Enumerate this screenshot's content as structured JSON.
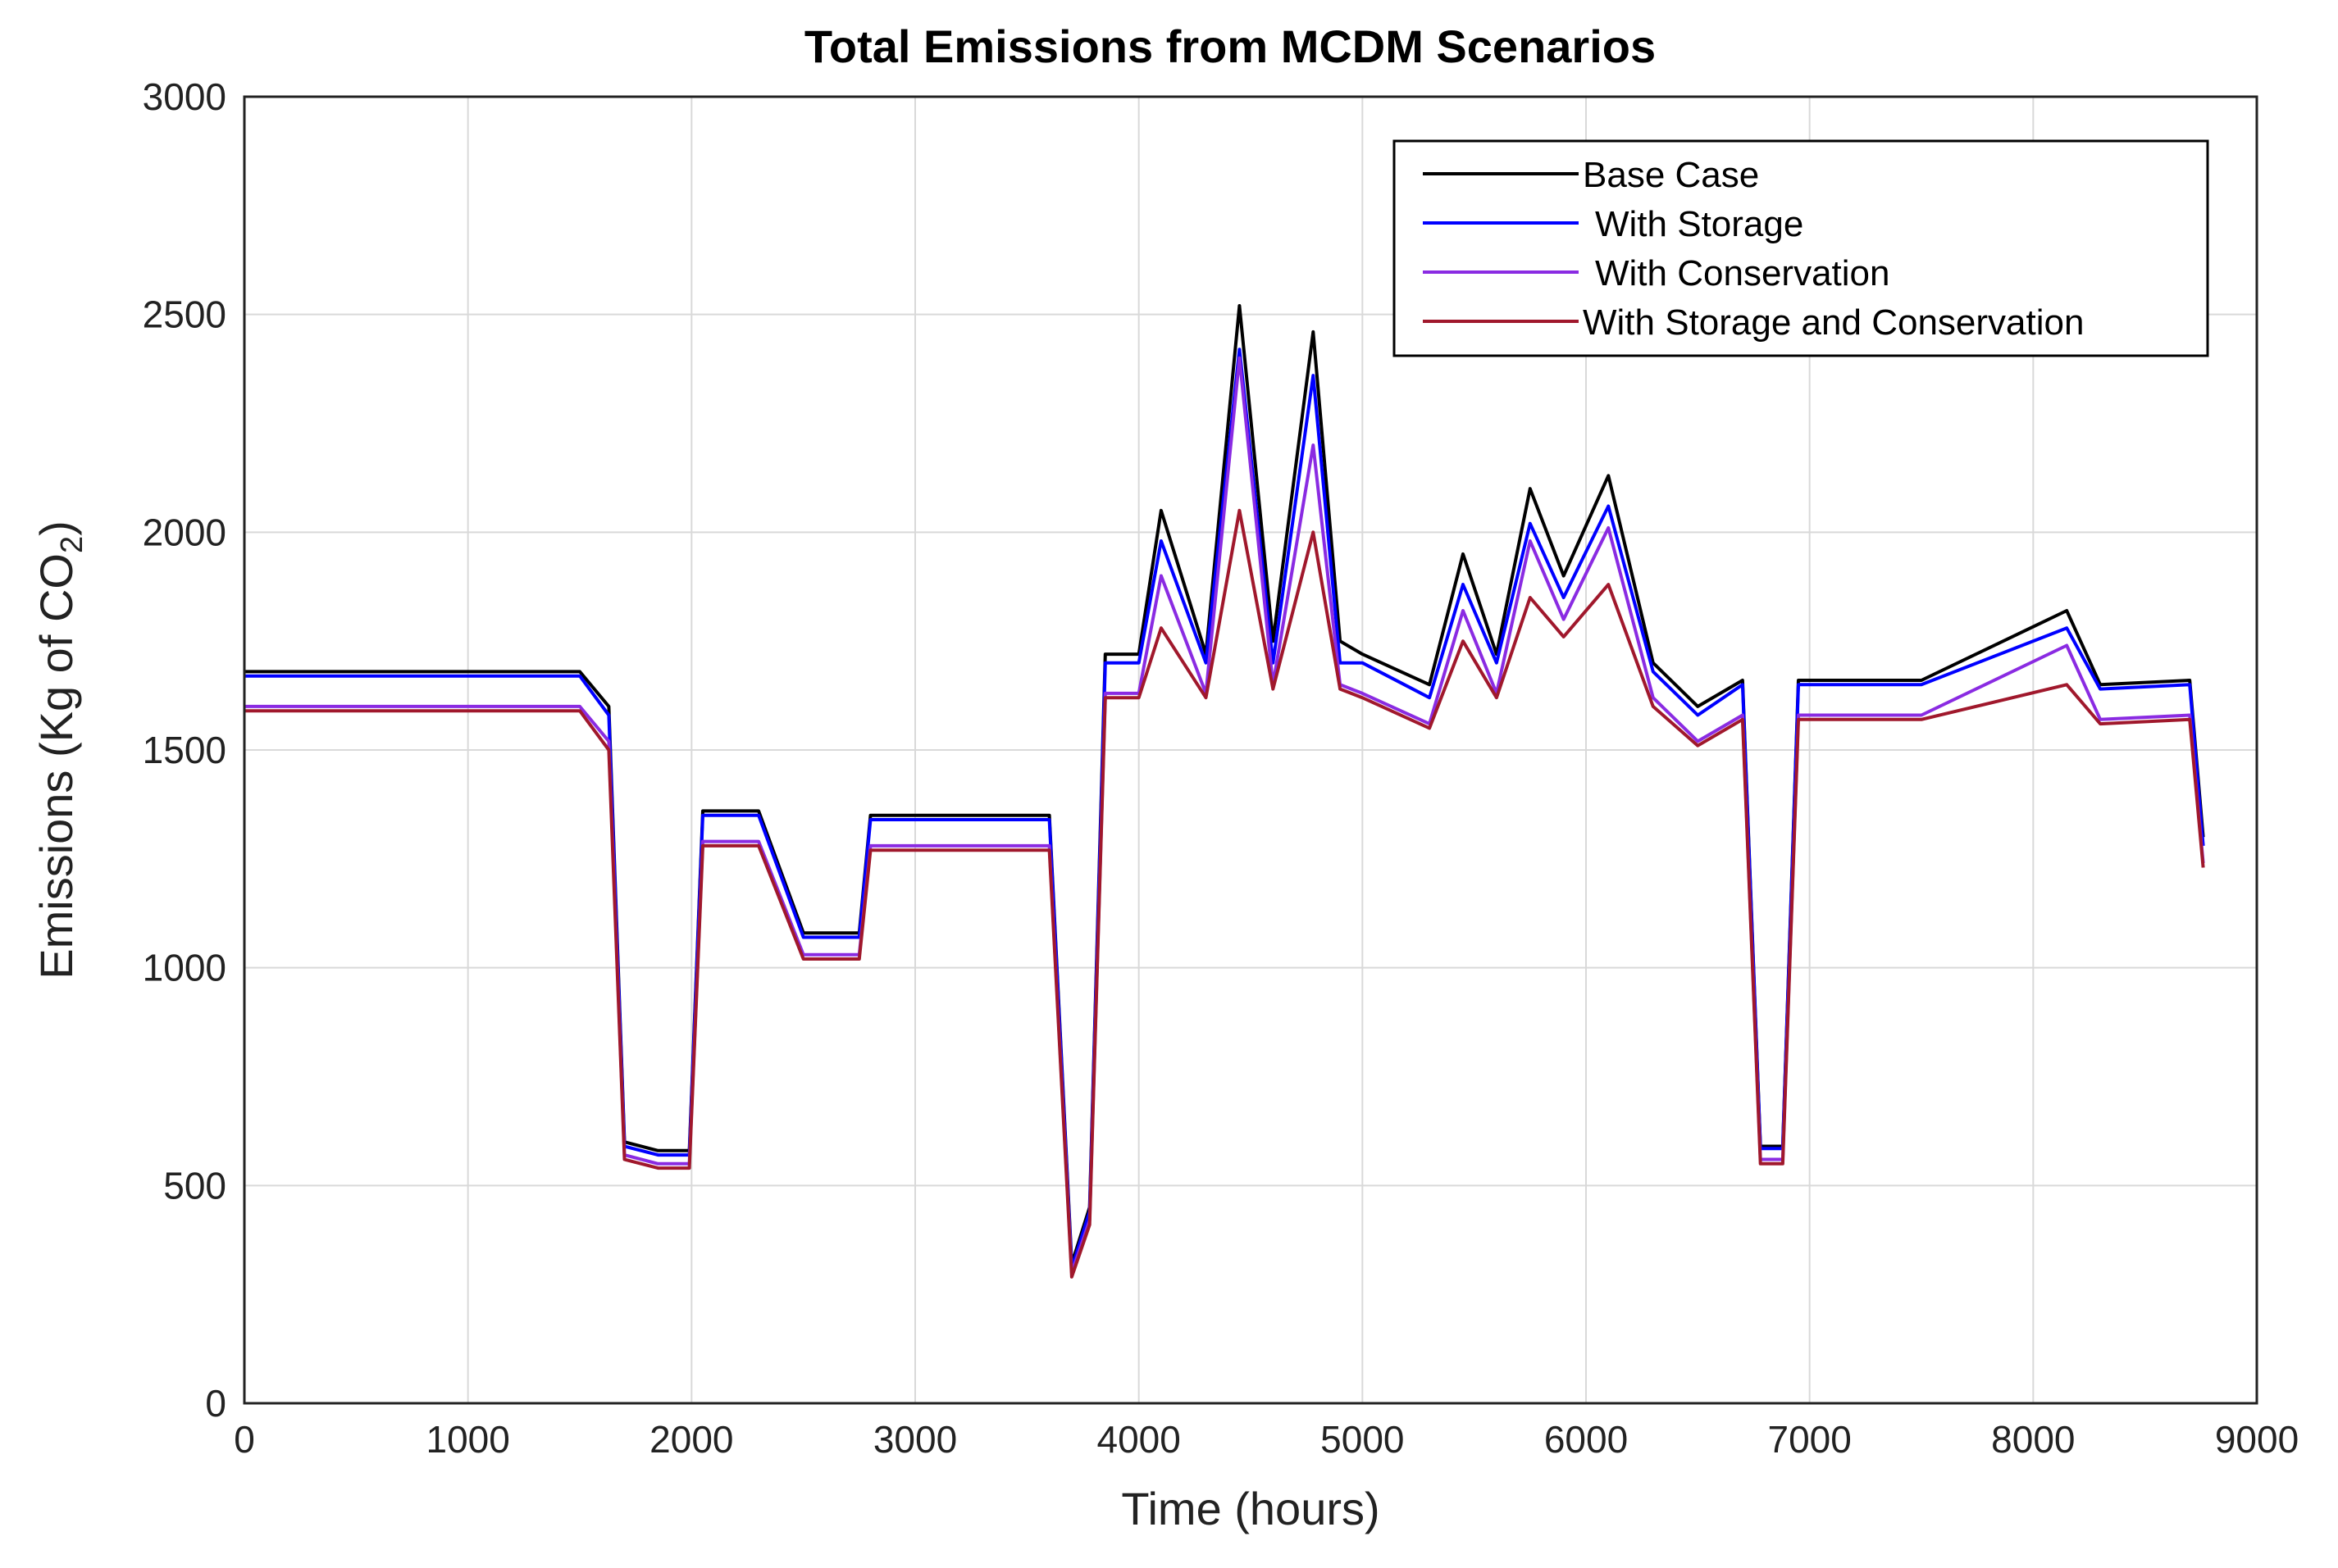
{
  "chart_data": {
    "type": "line",
    "title": "Total Emissions from MCDM Scenarios",
    "xlabel": "Time (hours)",
    "ylabel_main": "Emissions (Kg of CO",
    "ylabel_sub": "2",
    "ylabel_close": ")",
    "xlim": [
      0,
      9000
    ],
    "ylim": [
      0,
      3000
    ],
    "xticks": [
      0,
      1000,
      2000,
      3000,
      4000,
      5000,
      6000,
      7000,
      8000,
      9000
    ],
    "yticks": [
      0,
      500,
      1000,
      1500,
      2000,
      2500,
      3000
    ],
    "grid": true,
    "legend_position": "top-right",
    "series": [
      {
        "name": "Base Case",
        "color": "#000000",
        "x": [
          0,
          800,
          1500,
          1630,
          1700,
          1850,
          1990,
          2050,
          2300,
          2500,
          2750,
          2800,
          3200,
          3600,
          3700,
          3780,
          3850,
          4000,
          4100,
          4300,
          4450,
          4600,
          4780,
          4900,
          5000,
          5300,
          5450,
          5600,
          5750,
          5900,
          6100,
          6300,
          6500,
          6700,
          6780,
          6880,
          6950,
          7500,
          8150,
          8300,
          8700,
          8760
        ],
        "y": [
          1680,
          1680,
          1680,
          1600,
          600,
          580,
          580,
          1360,
          1360,
          1080,
          1080,
          1350,
          1350,
          1350,
          320,
          450,
          1720,
          1720,
          2050,
          1720,
          2520,
          1750,
          2460,
          1750,
          1720,
          1650,
          1950,
          1720,
          2100,
          1900,
          2130,
          1700,
          1600,
          1660,
          590,
          590,
          1660,
          1660,
          1820,
          1650,
          1660,
          1300
        ]
      },
      {
        "name": "With Storage",
        "color": "#0000ff",
        "x": [
          0,
          800,
          1500,
          1630,
          1700,
          1850,
          1990,
          2050,
          2300,
          2500,
          2750,
          2800,
          3200,
          3600,
          3700,
          3780,
          3850,
          4000,
          4100,
          4300,
          4450,
          4600,
          4780,
          4900,
          5000,
          5300,
          5450,
          5600,
          5750,
          5900,
          6100,
          6300,
          6500,
          6700,
          6780,
          6880,
          6950,
          7500,
          8150,
          8300,
          8700,
          8760
        ],
        "y": [
          1670,
          1670,
          1670,
          1580,
          590,
          570,
          570,
          1350,
          1350,
          1070,
          1070,
          1340,
          1340,
          1340,
          310,
          440,
          1700,
          1700,
          1980,
          1700,
          2420,
          1700,
          2360,
          1700,
          1700,
          1620,
          1880,
          1700,
          2020,
          1850,
          2060,
          1680,
          1580,
          1650,
          585,
          585,
          1650,
          1650,
          1780,
          1640,
          1650,
          1280
        ]
      },
      {
        "name": "With Conservation",
        "color": "#8a2be2",
        "x": [
          0,
          800,
          1500,
          1630,
          1700,
          1850,
          1990,
          2050,
          2300,
          2500,
          2750,
          2800,
          3200,
          3600,
          3700,
          3780,
          3850,
          4000,
          4100,
          4300,
          4450,
          4600,
          4780,
          4900,
          5000,
          5300,
          5450,
          5600,
          5750,
          5900,
          6100,
          6300,
          6500,
          6700,
          6780,
          6880,
          6950,
          7500,
          8150,
          8300,
          8700,
          8760
        ],
        "y": [
          1600,
          1600,
          1600,
          1520,
          570,
          550,
          550,
          1290,
          1290,
          1030,
          1030,
          1280,
          1280,
          1280,
          300,
          420,
          1630,
          1630,
          1900,
          1630,
          2400,
          1650,
          2200,
          1650,
          1630,
          1560,
          1820,
          1630,
          1980,
          1800,
          2010,
          1620,
          1520,
          1580,
          560,
          560,
          1580,
          1580,
          1740,
          1570,
          1580,
          1240
        ]
      },
      {
        "name": "With Storage and Conservation",
        "color": "#a0182c",
        "x": [
          0,
          800,
          1500,
          1630,
          1700,
          1850,
          1990,
          2050,
          2300,
          2500,
          2750,
          2800,
          3200,
          3600,
          3700,
          3780,
          3850,
          4000,
          4100,
          4300,
          4450,
          4600,
          4780,
          4900,
          5000,
          5300,
          5450,
          5600,
          5750,
          5900,
          6100,
          6300,
          6500,
          6700,
          6780,
          6880,
          6950,
          7500,
          8150,
          8300,
          8700,
          8760
        ],
        "y": [
          1590,
          1590,
          1590,
          1500,
          560,
          540,
          540,
          1280,
          1280,
          1020,
          1020,
          1270,
          1270,
          1270,
          290,
          410,
          1620,
          1620,
          1780,
          1620,
          2050,
          1640,
          2000,
          1640,
          1620,
          1550,
          1750,
          1620,
          1850,
          1760,
          1880,
          1600,
          1510,
          1570,
          550,
          550,
          1570,
          1570,
          1650,
          1560,
          1570,
          1230
        ]
      }
    ]
  }
}
